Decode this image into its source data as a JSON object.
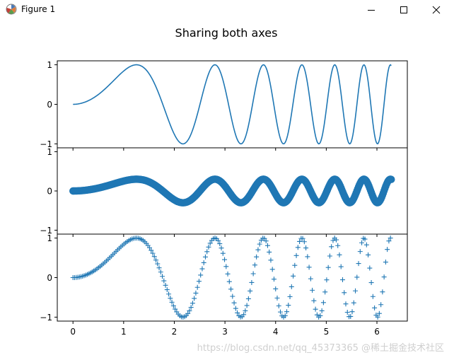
{
  "window": {
    "title": "Figure 1"
  },
  "watermark": "https://blog.csdn.net/qq_45373365 @稀土掘金技术社区",
  "chart_data": {
    "type": "line",
    "title": "Sharing both axes",
    "function": "y = sin(x^2), x from 0 to 2π",
    "x_range": [
      0,
      6.283
    ],
    "xticks": [
      0,
      1,
      2,
      3,
      4,
      5,
      6
    ],
    "xtick_labels": [
      "0",
      "1",
      "2",
      "3",
      "4",
      "5",
      "6"
    ],
    "sharex": true,
    "sharey": true,
    "series_color": "#1f77b4",
    "subplots": [
      {
        "style": "line",
        "amplitude": 1.0,
        "ylim": [
          -1.1,
          1.1
        ],
        "yticks": [
          -1,
          0,
          1
        ],
        "ytick_labels": [
          "−1",
          "0",
          "1"
        ]
      },
      {
        "style": "scatter",
        "amplitude": 0.3,
        "ylim": [
          -1.1,
          1.1
        ],
        "yticks": [
          -1,
          0,
          1
        ],
        "ytick_labels": [
          "−1",
          "0",
          "1"
        ]
      },
      {
        "style": "plus-markers",
        "amplitude": 1.0,
        "ylim": [
          -1.1,
          1.1
        ],
        "yticks": [
          -1,
          0,
          1
        ],
        "ytick_labels": [
          "−1",
          "0",
          "1"
        ]
      }
    ]
  }
}
